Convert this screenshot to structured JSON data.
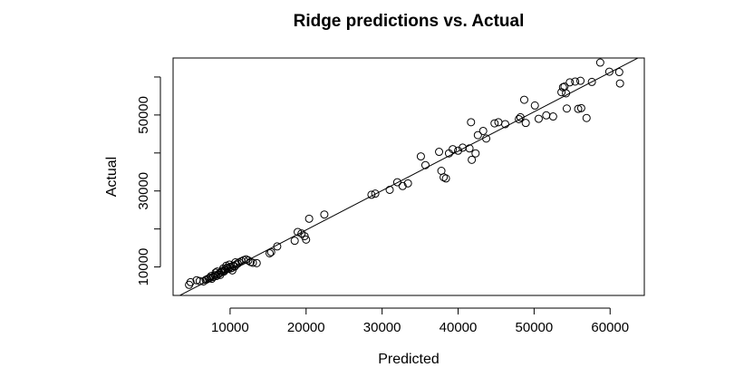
{
  "chart_data": {
    "type": "scatter",
    "title": "Ridge predictions vs. Actual",
    "xlabel": "Predicted",
    "ylabel": "Actual",
    "xlim": [
      2500,
      64500
    ],
    "ylim": [
      2500,
      65000
    ],
    "x_ticks": [
      10000,
      20000,
      30000,
      40000,
      50000,
      60000
    ],
    "x_tick_labels": [
      "10000",
      "20000",
      "30000",
      "40000",
      "50000",
      "60000"
    ],
    "y_ticks": [
      10000,
      20000,
      30000,
      40000,
      50000,
      60000
    ],
    "y_tick_labels": [
      "10000",
      "",
      "30000",
      "",
      "50000",
      ""
    ],
    "grid": false,
    "legend": "none",
    "marker": "open-circle",
    "fit_line": {
      "intercept": -1000,
      "slope": 1.0367
    },
    "series": [
      {
        "points": [
          [
            4600,
            5300
          ],
          [
            4800,
            6000
          ],
          [
            5600,
            6500
          ],
          [
            6000,
            6300
          ],
          [
            6500,
            6200
          ],
          [
            6800,
            6600
          ],
          [
            7000,
            6800
          ],
          [
            7200,
            7000
          ],
          [
            7400,
            7200
          ],
          [
            7600,
            6900
          ],
          [
            7800,
            7400
          ],
          [
            8000,
            7800
          ],
          [
            8200,
            7600
          ],
          [
            8400,
            8000
          ],
          [
            8600,
            8300
          ],
          [
            8800,
            8600
          ],
          [
            9000,
            9000
          ],
          [
            9200,
            8800
          ],
          [
            9400,
            9400
          ],
          [
            9600,
            9800
          ],
          [
            9800,
            9500
          ],
          [
            10000,
            10000
          ],
          [
            10200,
            9700
          ],
          [
            10400,
            10300
          ],
          [
            10600,
            10100
          ],
          [
            10800,
            10600
          ],
          [
            11000,
            10900
          ],
          [
            11200,
            11200
          ],
          [
            11500,
            11500
          ],
          [
            11800,
            11800
          ],
          [
            12100,
            12000
          ],
          [
            12400,
            11700
          ],
          [
            12700,
            11300
          ],
          [
            13000,
            11100
          ],
          [
            13500,
            11000
          ],
          [
            8300,
            8800
          ],
          [
            8700,
            7900
          ],
          [
            9100,
            9600
          ],
          [
            9500,
            10300
          ],
          [
            9900,
            10600
          ],
          [
            10300,
            9100
          ],
          [
            10700,
            11200
          ],
          [
            7500,
            7600
          ],
          [
            8100,
            8500
          ],
          [
            9300,
            9100
          ],
          [
            15200,
            13600
          ],
          [
            15400,
            13900
          ],
          [
            16200,
            15400
          ],
          [
            18500,
            16900
          ],
          [
            18900,
            19200
          ],
          [
            19400,
            18800
          ],
          [
            19800,
            18100
          ],
          [
            20000,
            17200
          ],
          [
            20400,
            22700
          ],
          [
            22400,
            23800
          ],
          [
            28600,
            29000
          ],
          [
            29100,
            29300
          ],
          [
            31000,
            30300
          ],
          [
            32000,
            32300
          ],
          [
            32700,
            31300
          ],
          [
            33400,
            32000
          ],
          [
            35100,
            39100
          ],
          [
            35700,
            36800
          ],
          [
            37500,
            40300
          ],
          [
            37800,
            35300
          ],
          [
            38100,
            33600
          ],
          [
            38400,
            33300
          ],
          [
            38800,
            39900
          ],
          [
            39300,
            41000
          ],
          [
            40000,
            40600
          ],
          [
            40600,
            41400
          ],
          [
            41500,
            41200
          ],
          [
            41700,
            48100
          ],
          [
            41800,
            38200
          ],
          [
            42300,
            39900
          ],
          [
            42600,
            44700
          ],
          [
            43300,
            45800
          ],
          [
            43700,
            43800
          ],
          [
            44800,
            47800
          ],
          [
            45300,
            48100
          ],
          [
            46200,
            47600
          ],
          [
            48000,
            48900
          ],
          [
            48200,
            49400
          ],
          [
            48700,
            54000
          ],
          [
            48900,
            47900
          ],
          [
            50100,
            52500
          ],
          [
            50600,
            49000
          ],
          [
            51600,
            49900
          ],
          [
            52500,
            49600
          ],
          [
            53600,
            56000
          ],
          [
            53800,
            57300
          ],
          [
            54200,
            55700
          ],
          [
            54300,
            51700
          ],
          [
            54700,
            58600
          ],
          [
            55400,
            58800
          ],
          [
            56100,
            59000
          ],
          [
            56900,
            49200
          ],
          [
            57600,
            58700
          ],
          [
            58700,
            63800
          ],
          [
            59900,
            61400
          ],
          [
            61200,
            61300
          ],
          [
            61300,
            58300
          ],
          [
            56200,
            51800
          ],
          [
            54000,
            57500
          ],
          [
            55800,
            51600
          ]
        ]
      }
    ]
  }
}
